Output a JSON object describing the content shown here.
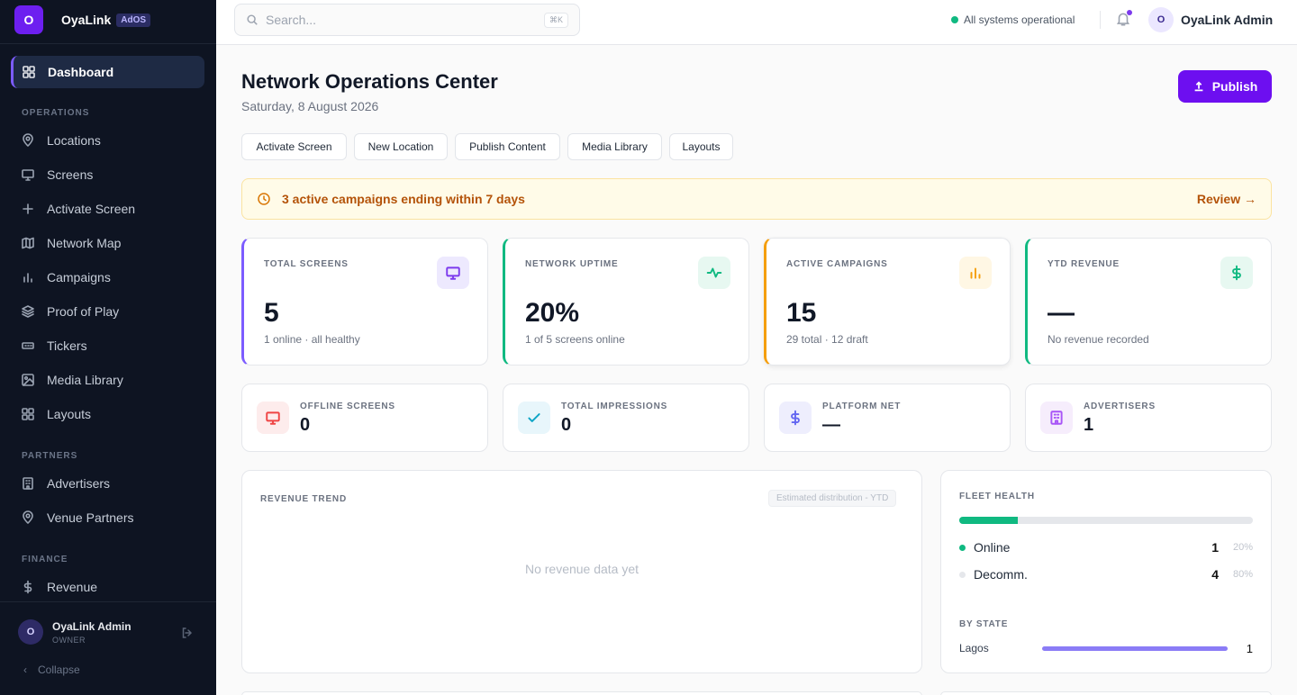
{
  "brand": {
    "logo_letter": "O",
    "name": "OyaLink",
    "badge": "AdOS"
  },
  "sidebar": {
    "active": {
      "label": "Dashboard",
      "icon": "grid-icon"
    },
    "sections": [
      {
        "title": "OPERATIONS",
        "items": [
          {
            "label": "Locations",
            "icon": "map-pin-icon"
          },
          {
            "label": "Screens",
            "icon": "monitor-icon"
          },
          {
            "label": "Activate Screen",
            "icon": "plus-icon"
          },
          {
            "label": "Network Map",
            "icon": "map-icon"
          },
          {
            "label": "Campaigns",
            "icon": "bar-chart-icon"
          },
          {
            "label": "Proof of Play",
            "icon": "layers-icon"
          },
          {
            "label": "Tickers",
            "icon": "ticker-icon"
          },
          {
            "label": "Media Library",
            "icon": "image-icon"
          },
          {
            "label": "Layouts",
            "icon": "layout-icon"
          }
        ]
      },
      {
        "title": "PARTNERS",
        "items": [
          {
            "label": "Advertisers",
            "icon": "building-icon"
          },
          {
            "label": "Venue Partners",
            "icon": "map-pin-icon"
          }
        ]
      },
      {
        "title": "FINANCE",
        "items": [
          {
            "label": "Revenue",
            "icon": "dollar-icon"
          }
        ]
      }
    ],
    "user": {
      "initial": "O",
      "name": "OyaLink Admin",
      "role": "OWNER"
    },
    "collapse_label": "Collapse"
  },
  "topbar": {
    "search_placeholder": "Search...",
    "shortcut": "⌘K",
    "status": "All systems operational",
    "user": {
      "initial": "O",
      "name": "OyaLink Admin"
    }
  },
  "page": {
    "title": "Network Operations Center",
    "date": "Saturday, 8 August 2026",
    "publish_label": "Publish",
    "quick_actions": [
      "Activate Screen",
      "New Location",
      "Publish Content",
      "Media Library",
      "Layouts"
    ]
  },
  "alert": {
    "text": "3 active campaigns ending within 7 days",
    "link": "Review →"
  },
  "kpis": [
    {
      "label": "TOTAL SCREENS",
      "value": "5",
      "sub": "1 online · all healthy",
      "icon": "monitor-icon",
      "accent": "#7c5cff"
    },
    {
      "label": "NETWORK UPTIME",
      "value": "20%",
      "sub": "1 of 5 screens online",
      "icon": "activity-icon",
      "accent": "#10b981"
    },
    {
      "label": "ACTIVE CAMPAIGNS",
      "value": "15",
      "sub": "29 total · 12 draft",
      "icon": "bar-chart-icon",
      "accent": "#f59e0b"
    },
    {
      "label": "YTD REVENUE",
      "value": "—",
      "sub": "No revenue recorded",
      "icon": "dollar-icon",
      "accent": "#10b981"
    }
  ],
  "minis": [
    {
      "label": "OFFLINE SCREENS",
      "value": "0",
      "icon": "monitor-icon"
    },
    {
      "label": "TOTAL IMPRESSIONS",
      "value": "0",
      "icon": "check-icon"
    },
    {
      "label": "PLATFORM NET",
      "value": "—",
      "icon": "dollar-icon"
    },
    {
      "label": "ADVERTISERS",
      "value": "1",
      "icon": "building-icon"
    }
  ],
  "revenue_trend": {
    "title": "REVENUE TREND",
    "tag": "Estimated distribution - YTD",
    "empty": "No revenue data yet"
  },
  "fleet_health": {
    "title": "FLEET HEALTH",
    "online_fraction": 0.2,
    "rows": [
      {
        "label": "Online",
        "count": "1",
        "pct": "20%",
        "color": "#10b981"
      },
      {
        "label": "Decomm.",
        "count": "4",
        "pct": "80%",
        "color": "#e5e7eb"
      }
    ],
    "by_state_title": "BY STATE",
    "states": [
      {
        "label": "Lagos",
        "count": "1",
        "fraction": 1.0
      }
    ]
  }
}
